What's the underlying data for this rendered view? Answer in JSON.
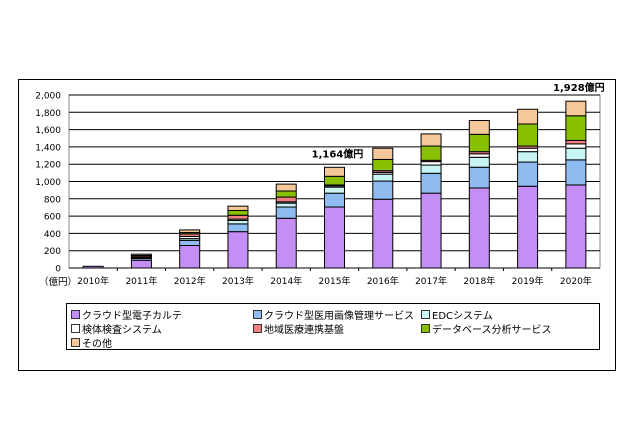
{
  "chart_data": {
    "type": "bar",
    "stacked": true,
    "categories": [
      "2010年",
      "2011年",
      "2012年",
      "2013年",
      "2014年",
      "2015年",
      "2016年",
      "2017年",
      "2018年",
      "2019年",
      "2020年"
    ],
    "unit_label": "（億円）",
    "ylim": [
      0,
      2000
    ],
    "yticks": [
      0,
      200,
      400,
      600,
      800,
      1000,
      1200,
      1400,
      1600,
      1800,
      2000
    ],
    "ytick_labels": [
      "0",
      "200",
      "400",
      "600",
      "800",
      "1,000",
      "1,200",
      "1,400",
      "1,600",
      "1,800",
      "2,000"
    ],
    "grid": true,
    "legend_position": "bottom",
    "series": [
      {
        "name": "クラウド型電子カルテ",
        "color": "#c58ef5",
        "values": [
          20,
          90,
          260,
          420,
          575,
          705,
          795,
          865,
          925,
          945,
          960
        ]
      },
      {
        "name": "クラウド型医用画像管理サービス",
        "color": "#8fbcf0",
        "values": [
          0,
          20,
          60,
          90,
          130,
          160,
          210,
          230,
          240,
          280,
          290
        ]
      },
      {
        "name": "EDCシステム",
        "color": "#c8f4f4",
        "values": [
          0,
          5,
          20,
          40,
          45,
          70,
          80,
          95,
          115,
          120,
          135
        ]
      },
      {
        "name": "検体検査システム",
        "color": "#ffffff",
        "values": [
          0,
          10,
          25,
          15,
          15,
          15,
          20,
          40,
          40,
          40,
          50
        ]
      },
      {
        "name": "地域医療連携基盤",
        "color": "#f08080",
        "values": [
          0,
          15,
          30,
          45,
          55,
          10,
          20,
          15,
          25,
          25,
          40
        ]
      },
      {
        "name": "データベース分析サービス",
        "color": "#88c000",
        "values": [
          0,
          5,
          15,
          55,
          70,
          100,
          130,
          165,
          200,
          255,
          285
        ]
      },
      {
        "name": "その他",
        "color": "#f5c89a",
        "values": [
          0,
          15,
          30,
          50,
          80,
          104,
          130,
          140,
          160,
          170,
          168
        ]
      }
    ],
    "annotations": [
      {
        "category": "2015年",
        "text": "1,164億円"
      },
      {
        "category": "2020年",
        "text": "1,928億円"
      }
    ]
  }
}
